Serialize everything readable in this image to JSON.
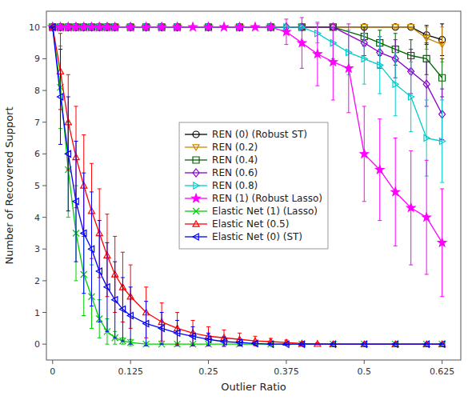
{
  "chart_data": {
    "type": "line",
    "xlabel": "Outlier Ratio",
    "ylabel": "Number of Recovered Support",
    "xlim": [
      -0.01,
      0.655
    ],
    "ylim": [
      -0.5,
      10.5
    ],
    "xticks": [
      0,
      0.125,
      0.25,
      0.375,
      0.5,
      0.625
    ],
    "yticks": [
      0,
      1,
      2,
      3,
      4,
      5,
      6,
      7,
      8,
      9,
      10
    ],
    "grid": false,
    "legend": "center",
    "series": [
      {
        "name": "REN (0) (Robust ST)",
        "color": "#000000",
        "marker": "circle",
        "line_style": "solid",
        "x": [
          0.0,
          0.0125,
          0.025,
          0.0375,
          0.05,
          0.0625,
          0.075,
          0.0875,
          0.1,
          0.125,
          0.15,
          0.175,
          0.2,
          0.25,
          0.3,
          0.35,
          0.4,
          0.45,
          0.5,
          0.55,
          0.575,
          0.6,
          0.625
        ],
        "values": [
          10,
          10,
          10,
          10,
          10,
          10,
          10,
          10,
          10,
          10,
          10,
          10,
          10,
          10,
          10,
          10,
          10,
          10,
          10,
          10,
          10,
          9.75,
          9.6
        ],
        "errors": [
          0,
          0,
          0,
          0,
          0,
          0,
          0,
          0,
          0,
          0,
          0,
          0,
          0,
          0,
          0,
          0,
          0,
          0,
          0,
          0,
          0,
          0.3,
          0.5
        ]
      },
      {
        "name": "REN (0.2)",
        "color": "#CC8800",
        "marker": "triangle-down",
        "line_style": "solid",
        "x": [
          0.0,
          0.0125,
          0.025,
          0.0375,
          0.05,
          0.0625,
          0.075,
          0.0875,
          0.1,
          0.125,
          0.15,
          0.175,
          0.2,
          0.25,
          0.3,
          0.35,
          0.4,
          0.45,
          0.5,
          0.55,
          0.575,
          0.6,
          0.625
        ],
        "values": [
          10,
          10,
          10,
          10,
          10,
          10,
          10,
          10,
          10,
          10,
          10,
          10,
          10,
          10,
          10,
          10,
          10,
          10,
          10,
          10,
          10,
          9.65,
          9.45
        ],
        "errors": [
          0,
          0,
          0,
          0,
          0,
          0,
          0,
          0,
          0,
          0,
          0,
          0,
          0,
          0,
          0,
          0,
          0,
          0,
          0,
          0,
          0,
          0.35,
          0.55
        ]
      },
      {
        "name": "REN (0.4)",
        "color": "#006400",
        "marker": "square",
        "line_style": "solid",
        "x": [
          0.0,
          0.0125,
          0.025,
          0.0375,
          0.05,
          0.0625,
          0.075,
          0.0875,
          0.1,
          0.125,
          0.15,
          0.175,
          0.2,
          0.25,
          0.3,
          0.35,
          0.4,
          0.45,
          0.5,
          0.525,
          0.55,
          0.575,
          0.6,
          0.625
        ],
        "values": [
          10,
          10,
          10,
          10,
          10,
          10,
          10,
          10,
          10,
          10,
          10,
          10,
          10,
          10,
          10,
          10,
          10,
          10,
          9.7,
          9.5,
          9.3,
          9.1,
          9.0,
          8.4
        ],
        "errors": [
          0,
          0,
          0,
          0,
          0,
          0,
          0,
          0,
          0,
          0,
          0,
          0,
          0,
          0,
          0,
          0,
          0,
          0,
          0.3,
          0.4,
          0.5,
          0.5,
          0.5,
          0.6
        ]
      },
      {
        "name": "REN (0.6)",
        "color": "#8800CC",
        "marker": "diamond",
        "line_style": "solid",
        "x": [
          0.0,
          0.0125,
          0.025,
          0.0375,
          0.05,
          0.0625,
          0.075,
          0.0875,
          0.1,
          0.125,
          0.15,
          0.175,
          0.2,
          0.25,
          0.3,
          0.35,
          0.375,
          0.4,
          0.45,
          0.5,
          0.525,
          0.55,
          0.575,
          0.6,
          0.625
        ],
        "values": [
          10,
          10,
          10,
          10,
          10,
          10,
          10,
          10,
          10,
          10,
          10,
          10,
          10,
          10,
          10,
          10,
          10,
          10,
          10,
          9.5,
          9.2,
          9.0,
          8.6,
          8.2,
          7.25
        ],
        "errors": [
          0,
          0,
          0,
          0,
          0,
          0,
          0,
          0,
          0,
          0,
          0,
          0,
          0,
          0,
          0,
          0,
          0,
          0,
          0,
          0.4,
          0.5,
          0.6,
          0.7,
          0.7,
          0.8
        ]
      },
      {
        "name": "REN (0.8)",
        "color": "#00CCCC",
        "marker": "triangle-right",
        "line_style": "solid",
        "x": [
          0.0,
          0.0125,
          0.025,
          0.0375,
          0.05,
          0.0625,
          0.075,
          0.0875,
          0.1,
          0.125,
          0.15,
          0.175,
          0.2,
          0.25,
          0.3,
          0.35,
          0.375,
          0.4,
          0.425,
          0.45,
          0.475,
          0.5,
          0.525,
          0.55,
          0.575,
          0.6,
          0.625
        ],
        "values": [
          10,
          10,
          10,
          10,
          10,
          10,
          10,
          10,
          10,
          10,
          10,
          10,
          10,
          10,
          10,
          10,
          10,
          10,
          9.8,
          9.5,
          9.2,
          9.0,
          8.8,
          8.2,
          7.8,
          6.5,
          6.4
        ],
        "errors": [
          0,
          0,
          0,
          0,
          0,
          0,
          0,
          0,
          0,
          0,
          0,
          0,
          0,
          0,
          0,
          0,
          0,
          0,
          0.3,
          0.5,
          0.7,
          0.8,
          0.9,
          1.0,
          1.1,
          1.2,
          1.3
        ]
      },
      {
        "name": "REN (1) (Robust Lasso)",
        "color": "#FF00FF",
        "marker": "star",
        "line_style": "solid",
        "x": [
          0.0,
          0.0125,
          0.025,
          0.0375,
          0.05,
          0.0625,
          0.075,
          0.0875,
          0.1,
          0.125,
          0.15,
          0.175,
          0.2,
          0.225,
          0.25,
          0.275,
          0.3,
          0.325,
          0.35,
          0.375,
          0.4,
          0.425,
          0.45,
          0.475,
          0.5,
          0.525,
          0.55,
          0.575,
          0.6,
          0.625
        ],
        "values": [
          10,
          10,
          10,
          10,
          10,
          10,
          10,
          10,
          10,
          10,
          10,
          10,
          10,
          10,
          10,
          10,
          10,
          10,
          10,
          9.85,
          9.5,
          9.15,
          8.9,
          8.7,
          6.0,
          5.5,
          4.8,
          4.3,
          4.0,
          3.2
        ],
        "errors": [
          0,
          0,
          0,
          0,
          0,
          0,
          0,
          0,
          0,
          0,
          0,
          0,
          0,
          0,
          0,
          0,
          0,
          0,
          0,
          0.4,
          0.8,
          1.0,
          1.2,
          1.4,
          1.5,
          1.6,
          1.7,
          1.8,
          1.8,
          1.7
        ]
      },
      {
        "name": "Elastic Net (1) (Lasso)",
        "color": "#00CC00",
        "marker": "x",
        "line_style": "solid",
        "x": [
          0.0,
          0.0125,
          0.025,
          0.0375,
          0.05,
          0.0625,
          0.075,
          0.0875,
          0.1,
          0.1125,
          0.125,
          0.15,
          0.175,
          0.2,
          0.225,
          0.25,
          0.3,
          0.35,
          0.4,
          0.45,
          0.5,
          0.55,
          0.6,
          0.625
        ],
        "values": [
          10,
          8.1,
          5.5,
          3.5,
          2.2,
          1.5,
          0.8,
          0.4,
          0.2,
          0.1,
          0.05,
          0.0,
          0.0,
          0.0,
          0.0,
          0.0,
          0.0,
          0.0,
          0.0,
          0.0,
          0.0,
          0.0,
          0.0,
          0.0
        ],
        "errors": [
          0,
          1.3,
          1.5,
          1.5,
          1.3,
          1.0,
          0.6,
          0.4,
          0.2,
          0.1,
          0.1,
          0.05,
          0.0,
          0.0,
          0.0,
          0.0,
          0.0,
          0.0,
          0.0,
          0.0,
          0.0,
          0.0,
          0.0,
          0.0
        ]
      },
      {
        "name": "Elastic Net (0.5)",
        "color": "#FF0000",
        "marker": "triangle-up",
        "line_style": "solid",
        "x": [
          0.0,
          0.0125,
          0.025,
          0.0375,
          0.05,
          0.0625,
          0.075,
          0.0875,
          0.1,
          0.1125,
          0.125,
          0.15,
          0.175,
          0.2,
          0.225,
          0.25,
          0.275,
          0.3,
          0.325,
          0.35,
          0.375,
          0.4,
          0.425,
          0.45,
          0.5,
          0.55,
          0.6,
          0.625
        ],
        "values": [
          10,
          8.6,
          7.0,
          5.9,
          5.0,
          4.2,
          3.5,
          2.8,
          2.2,
          1.8,
          1.5,
          1.0,
          0.7,
          0.5,
          0.35,
          0.25,
          0.2,
          0.15,
          0.1,
          0.08,
          0.05,
          0.02,
          0.01,
          0.0,
          0.0,
          0.0,
          0.0,
          0.0
        ],
        "errors": [
          0,
          1.2,
          1.5,
          1.6,
          1.6,
          1.5,
          1.4,
          1.3,
          1.2,
          1.1,
          1.0,
          0.8,
          0.6,
          0.5,
          0.4,
          0.3,
          0.25,
          0.2,
          0.15,
          0.1,
          0.08,
          0.05,
          0.03,
          0.0,
          0.0,
          0.0,
          0.0,
          0.0
        ]
      },
      {
        "name": "Elastic Net (0) (ST)",
        "color": "#0000FF",
        "marker": "triangle-left",
        "line_style": "solid",
        "x": [
          0.0,
          0.0125,
          0.025,
          0.0375,
          0.05,
          0.0625,
          0.075,
          0.0875,
          0.1,
          0.1125,
          0.125,
          0.15,
          0.175,
          0.2,
          0.225,
          0.25,
          0.275,
          0.3,
          0.325,
          0.35,
          0.375,
          0.4,
          0.45,
          0.5,
          0.55,
          0.6,
          0.625
        ],
        "values": [
          10,
          7.8,
          6.0,
          4.5,
          3.5,
          3.0,
          2.3,
          1.8,
          1.4,
          1.1,
          0.9,
          0.65,
          0.5,
          0.35,
          0.25,
          0.15,
          0.08,
          0.05,
          0.02,
          0.0,
          0.0,
          0.0,
          0.0,
          0.0,
          0.0,
          0.0,
          0.0
        ],
        "errors": [
          0,
          1.5,
          1.8,
          1.9,
          1.9,
          1.8,
          1.6,
          1.4,
          1.2,
          1.0,
          0.9,
          0.7,
          0.5,
          0.4,
          0.3,
          0.2,
          0.15,
          0.1,
          0.05,
          0.0,
          0.0,
          0.0,
          0.0,
          0.0,
          0.0,
          0.0,
          0.0
        ]
      }
    ]
  }
}
